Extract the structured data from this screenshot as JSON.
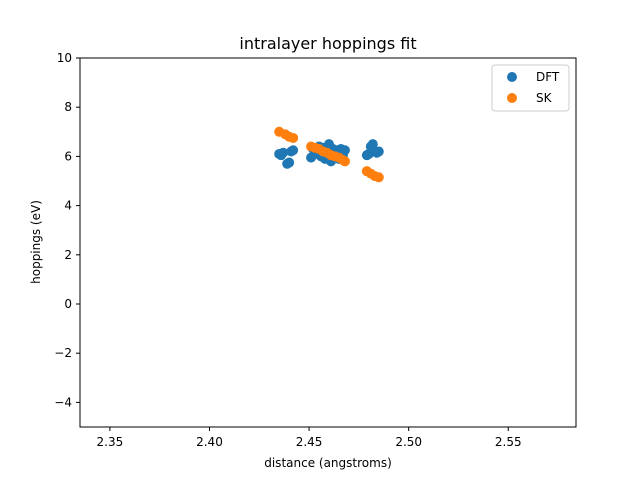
{
  "chart_data": {
    "type": "scatter",
    "title": "intralayer hoppings fit",
    "xlabel": "distance (angstroms)",
    "ylabel": "hoppings (eV)",
    "xlim": [
      2.335,
      2.584
    ],
    "ylim": [
      -5,
      10
    ],
    "xticks": [
      2.35,
      2.4,
      2.45,
      2.5,
      2.55
    ],
    "xtick_labels": [
      "2.35",
      "2.40",
      "2.45",
      "2.50",
      "2.55"
    ],
    "yticks": [
      -4,
      -2,
      0,
      2,
      4,
      6,
      8,
      10
    ],
    "ytick_labels": [
      "−4",
      "−2",
      "0",
      "2",
      "4",
      "6",
      "8",
      "10"
    ],
    "grid": false,
    "legend_position": "top-right",
    "series": [
      {
        "name": "DFT",
        "color": "#1f77b4",
        "points": [
          [
            2.435,
            6.1
          ],
          [
            2.436,
            6.05
          ],
          [
            2.437,
            6.15
          ],
          [
            2.439,
            5.7
          ],
          [
            2.44,
            5.75
          ],
          [
            2.441,
            6.2
          ],
          [
            2.442,
            6.25
          ],
          [
            2.451,
            5.95
          ],
          [
            2.452,
            6.3
          ],
          [
            2.453,
            6.2
          ],
          [
            2.454,
            6.1
          ],
          [
            2.455,
            6.4
          ],
          [
            2.456,
            6.0
          ],
          [
            2.457,
            6.35
          ],
          [
            2.458,
            5.9
          ],
          [
            2.459,
            6.2
          ],
          [
            2.46,
            6.5
          ],
          [
            2.461,
            5.8
          ],
          [
            2.462,
            6.3
          ],
          [
            2.463,
            6.0
          ],
          [
            2.464,
            6.25
          ],
          [
            2.465,
            5.9
          ],
          [
            2.466,
            6.3
          ],
          [
            2.467,
            6.05
          ],
          [
            2.468,
            6.25
          ],
          [
            2.479,
            6.05
          ],
          [
            2.48,
            6.1
          ],
          [
            2.481,
            6.4
          ],
          [
            2.482,
            6.5
          ],
          [
            2.484,
            6.15
          ],
          [
            2.485,
            6.2
          ]
        ]
      },
      {
        "name": "SK",
        "color": "#ff7f0e",
        "points": [
          [
            2.435,
            7.0
          ],
          [
            2.438,
            6.9
          ],
          [
            2.44,
            6.8
          ],
          [
            2.442,
            6.75
          ],
          [
            2.451,
            6.4
          ],
          [
            2.453,
            6.35
          ],
          [
            2.455,
            6.3
          ],
          [
            2.457,
            6.2
          ],
          [
            2.459,
            6.15
          ],
          [
            2.461,
            6.05
          ],
          [
            2.463,
            6.0
          ],
          [
            2.465,
            5.95
          ],
          [
            2.467,
            5.85
          ],
          [
            2.468,
            5.8
          ],
          [
            2.479,
            5.4
          ],
          [
            2.481,
            5.3
          ],
          [
            2.483,
            5.2
          ],
          [
            2.485,
            5.15
          ]
        ]
      }
    ]
  }
}
